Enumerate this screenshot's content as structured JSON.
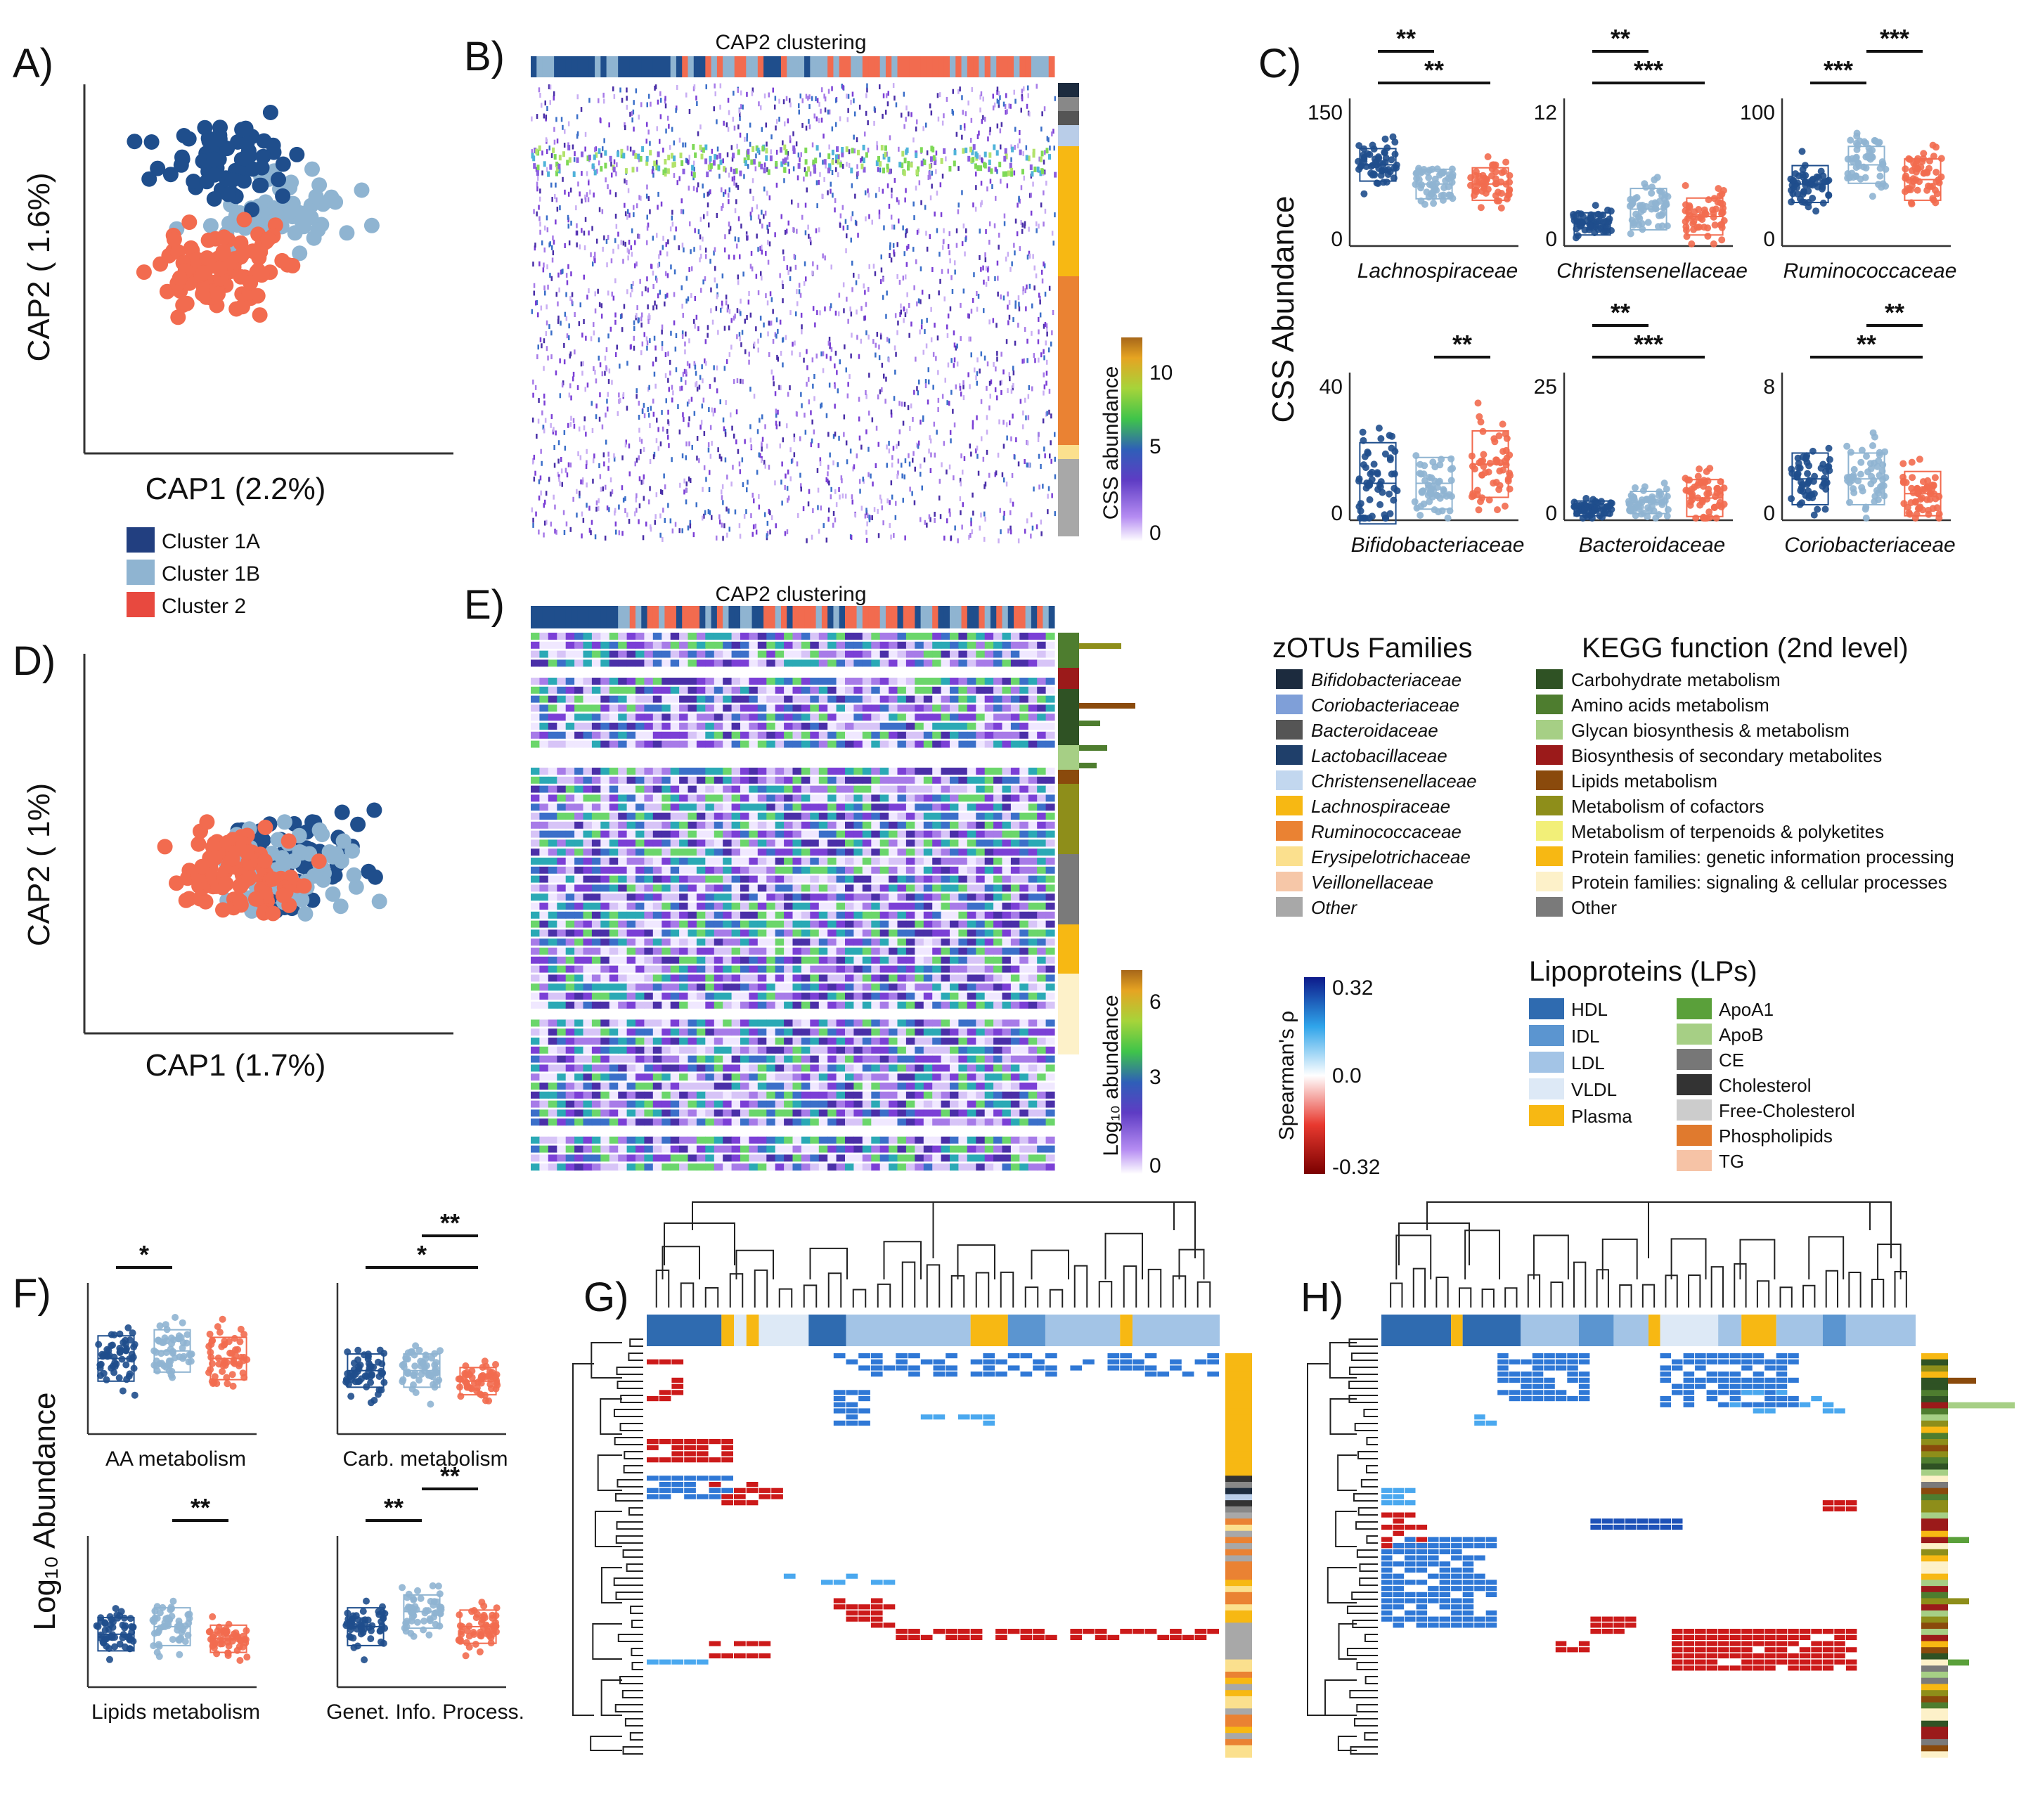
{
  "colors": {
    "c1a": "#1f4e8c",
    "c1b": "#8fb4d1",
    "c2": "#f26b4f",
    "pos": "#1a5cc9",
    "neg": "#c61a1a"
  },
  "panel_labels": {
    "A": "A)",
    "B": "B)",
    "C": "C)",
    "D": "D)",
    "E": "E)",
    "F": "F)",
    "G": "G)",
    "H": "H)"
  },
  "panelA": {
    "xlabel": "CAP1 (2.2%)",
    "ylabel": "CAP2 ( 1.6%)"
  },
  "panelD": {
    "xlabel": "CAP1 (1.7%)",
    "ylabel": "CAP2 ( 1%)"
  },
  "cluster_legend": [
    "Cluster 1A",
    "Cluster 1B",
    "Cluster 2"
  ],
  "panelB": {
    "title": "CAP2 clustering",
    "scale_label": "CSS abundance",
    "ticks": [
      "10",
      "5",
      "0"
    ]
  },
  "panelE": {
    "title": "CAP2 clustering",
    "scale_label": "Log₁₀ abundance",
    "ticks": [
      "6",
      "3",
      "0"
    ]
  },
  "panelC": {
    "ylabel": "CSS Abundance",
    "plots": [
      {
        "name": "Lachnospiraceae",
        "yticks": [
          "150",
          "0"
        ],
        "sig": [
          "**",
          "**"
        ]
      },
      {
        "name": "Christensenellaceae",
        "yticks": [
          "12",
          "0"
        ],
        "sig": [
          "***",
          "**"
        ]
      },
      {
        "name": "Ruminococcaceae",
        "yticks": [
          "100",
          "0"
        ],
        "sig": [
          "***",
          "***"
        ]
      },
      {
        "name": "Bifidobacteriaceae",
        "yticks": [
          "40",
          "0"
        ],
        "sig": [
          "**"
        ]
      },
      {
        "name": "Bacteroidaceae",
        "yticks": [
          "25",
          "0"
        ],
        "sig": [
          "***",
          "**"
        ]
      },
      {
        "name": "Coriobacteriaceae",
        "yticks": [
          "8",
          "0"
        ],
        "sig": [
          "**",
          "**"
        ]
      }
    ]
  },
  "panelF": {
    "ylabel": "Log₁₀ Abundance",
    "plots": [
      {
        "name": "AA metabolism",
        "sig": [
          "*"
        ]
      },
      {
        "name": "Carb. metabolism",
        "sig": [
          "*",
          "**"
        ]
      },
      {
        "name": "Lipids metabolism",
        "sig": [
          "**"
        ]
      },
      {
        "name": "Genet. Info. Process.",
        "sig": [
          "**",
          "**"
        ]
      }
    ]
  },
  "legends": {
    "zotu_title": "zOTUs Families",
    "zotu": [
      {
        "label": "Bifidobacteriaceae",
        "color": "#1c2b3e"
      },
      {
        "label": "Coriobacteriaceae",
        "color": "#7f9fd8"
      },
      {
        "label": "Bacteroidaceae",
        "color": "#555555"
      },
      {
        "label": "Lactobacillaceae",
        "color": "#1f3f6a"
      },
      {
        "label": "Christensenellaceae",
        "color": "#c2d7ef"
      },
      {
        "label": "Lachnospiraceae",
        "color": "#f7b813"
      },
      {
        "label": "Ruminococcaceae",
        "color": "#ea8233"
      },
      {
        "label": "Erysipelotrichaceae",
        "color": "#fbe08e"
      },
      {
        "label": "Veillonellaceae",
        "color": "#f6c7a8"
      },
      {
        "label": "Other",
        "color": "#a8a8a8"
      }
    ],
    "kegg_title": "KEGG function (2nd level)",
    "kegg": [
      {
        "label": "Carbohydrate metabolism",
        "color": "#2f5224"
      },
      {
        "label": "Amino acids metabolism",
        "color": "#4e7d2f"
      },
      {
        "label": "Glycan biosynthesis & metabolism",
        "color": "#a6cf85"
      },
      {
        "label": "Biosynthesis of secondary metabolites",
        "color": "#9b1a1a"
      },
      {
        "label": "Lipids metabolism",
        "color": "#8a4a0c"
      },
      {
        "label": "Metabolism of cofactors",
        "color": "#8e8e1a"
      },
      {
        "label": "Metabolism of terpenoids & polyketites",
        "color": "#f2ef78"
      },
      {
        "label": "Protein families: genetic information processing",
        "color": "#f7b813"
      },
      {
        "label": "Protein families: signaling & cellular processes",
        "color": "#fdf1c9"
      },
      {
        "label": "Other",
        "color": "#7a7a7a"
      }
    ],
    "lp_title": "Lipoproteins (LPs)",
    "lp_left": [
      {
        "label": "HDL",
        "color": "#2f6bb0"
      },
      {
        "label": "IDL",
        "color": "#5b95d0"
      },
      {
        "label": "LDL",
        "color": "#a3c4e6"
      },
      {
        "label": "VLDL",
        "color": "#dde9f6"
      },
      {
        "label": "Plasma",
        "color": "#f7b813"
      }
    ],
    "lp_right": [
      {
        "label": "ApoA1",
        "color": "#5aa03a"
      },
      {
        "label": "ApoB",
        "color": "#a6cf85"
      },
      {
        "label": "CE",
        "color": "#777777"
      },
      {
        "label": "Cholesterol",
        "color": "#333333"
      },
      {
        "label": "Free-Cholesterol",
        "color": "#cccccc"
      },
      {
        "label": "Phospholipids",
        "color": "#e07a2e"
      },
      {
        "label": "TG",
        "color": "#f6c3a6"
      }
    ],
    "rho_title": "Spearman's ρ",
    "rho_ticks": [
      "0.32",
      "0.0",
      "-0.32"
    ]
  }
}
